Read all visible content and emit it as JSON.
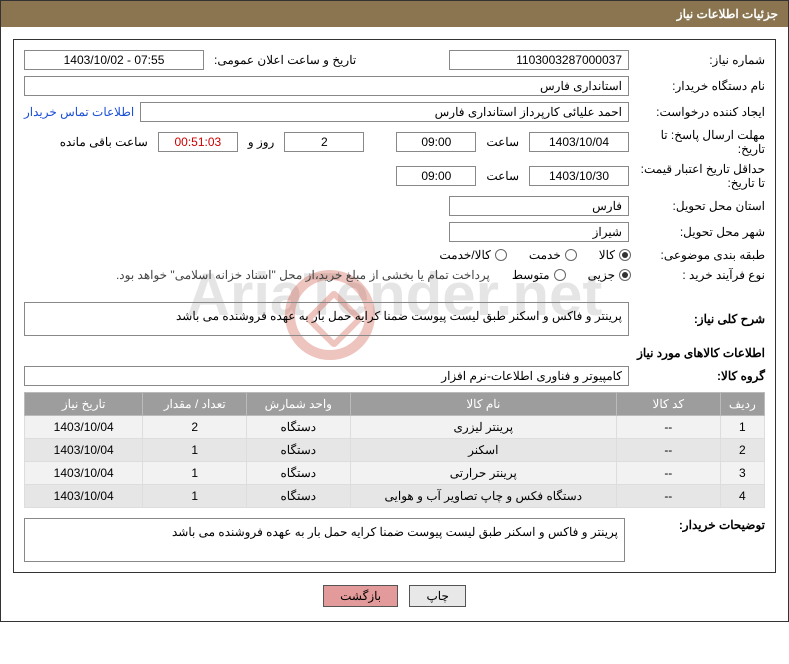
{
  "header": {
    "title": "جزئیات اطلاعات نیاز"
  },
  "labels": {
    "need_number": "شماره نیاز:",
    "announce_datetime": "تاریخ و ساعت اعلان عمومی:",
    "buyer_org": "نام دستگاه خریدار:",
    "requester": "ایجاد کننده درخواست:",
    "buyer_contact": "اطلاعات تماس خریدار",
    "response_deadline": "مهلت ارسال پاسخ: تا تاریخ:",
    "hour": "ساعت",
    "days_and": "روز و",
    "remaining": "ساعت باقی مانده",
    "price_validity": "حداقل تاریخ اعتبار قیمت: تا تاریخ:",
    "delivery_province": "استان محل تحویل:",
    "delivery_city": "شهر محل تحویل:",
    "category": "طبقه بندی موضوعی:",
    "cat_goods": "کالا",
    "cat_service": "خدمت",
    "cat_goods_service": "کالا/خدمت",
    "purchase_type": "نوع فرآیند خرید :",
    "pt_minor": "جزیی",
    "pt_medium": "متوسط",
    "purchase_note": "پرداخت تمام یا بخشی از مبلغ خرید،از محل \"اسناد خزانه اسلامی\" خواهد بود.",
    "need_overview": "شرح کلی نیاز:",
    "items_info": "اطلاعات کالاهای مورد نیاز",
    "goods_group": "گروه کالا:",
    "buyer_notes": "توضیحات خریدار:"
  },
  "values": {
    "need_number": "1103003287000037",
    "announce_datetime": "1403/10/02 - 07:55",
    "buyer_org": "استانداری فارس",
    "requester": "احمد علیائی کارپرداز استانداری فارس",
    "response_date": "1403/10/04",
    "response_time": "09:00",
    "remaining_days": "2",
    "remaining_time": "00:51:03",
    "price_validity_date": "1403/10/30",
    "price_validity_time": "09:00",
    "delivery_province": "فارس",
    "delivery_city": "شیراز",
    "need_overview_text": "پرینتر و فاکس و اسکنر طبق لیست پیوست ضمنا کرایه حمل بار به عهده فروشنده می باشد",
    "goods_group": "کامپیوتر و فناوری اطلاعات-نرم افزار",
    "buyer_notes_text": "پرینتر و فاکس و اسکنر طبق لیست پیوست ضمنا کرایه حمل بار به عهده فروشنده می باشد"
  },
  "radios": {
    "category_selected": "goods",
    "purchase_selected": "minor"
  },
  "table": {
    "columns": [
      "ردیف",
      "کد کالا",
      "نام کالا",
      "واحد شمارش",
      "تعداد / مقدار",
      "تاریخ نیاز"
    ],
    "col_widths": [
      "6%",
      "14%",
      "36%",
      "14%",
      "14%",
      "16%"
    ],
    "rows": [
      {
        "n": "1",
        "code": "--",
        "name": "پرینتر لیزری",
        "unit": "دستگاه",
        "qty": "2",
        "date": "1403/10/04"
      },
      {
        "n": "2",
        "code": "--",
        "name": "اسکنر",
        "unit": "دستگاه",
        "qty": "1",
        "date": "1403/10/04"
      },
      {
        "n": "3",
        "code": "--",
        "name": "پرینتر حرارتی",
        "unit": "دستگاه",
        "qty": "1",
        "date": "1403/10/04"
      },
      {
        "n": "4",
        "code": "--",
        "name": "دستگاه فکس و چاپ تصاویر آب و هوایی",
        "unit": "دستگاه",
        "qty": "1",
        "date": "1403/10/04"
      }
    ]
  },
  "buttons": {
    "print": "چاپ",
    "back": "بازگشت"
  },
  "colors": {
    "header_bg": "#8a7550",
    "th_bg": "#9d9d9d",
    "row_odd": "#f2f2f2",
    "row_even": "#e6e6e6",
    "link": "#1a4fd6",
    "btn_back_bg": "#e39a9a"
  },
  "watermark": "AriaTender.net"
}
